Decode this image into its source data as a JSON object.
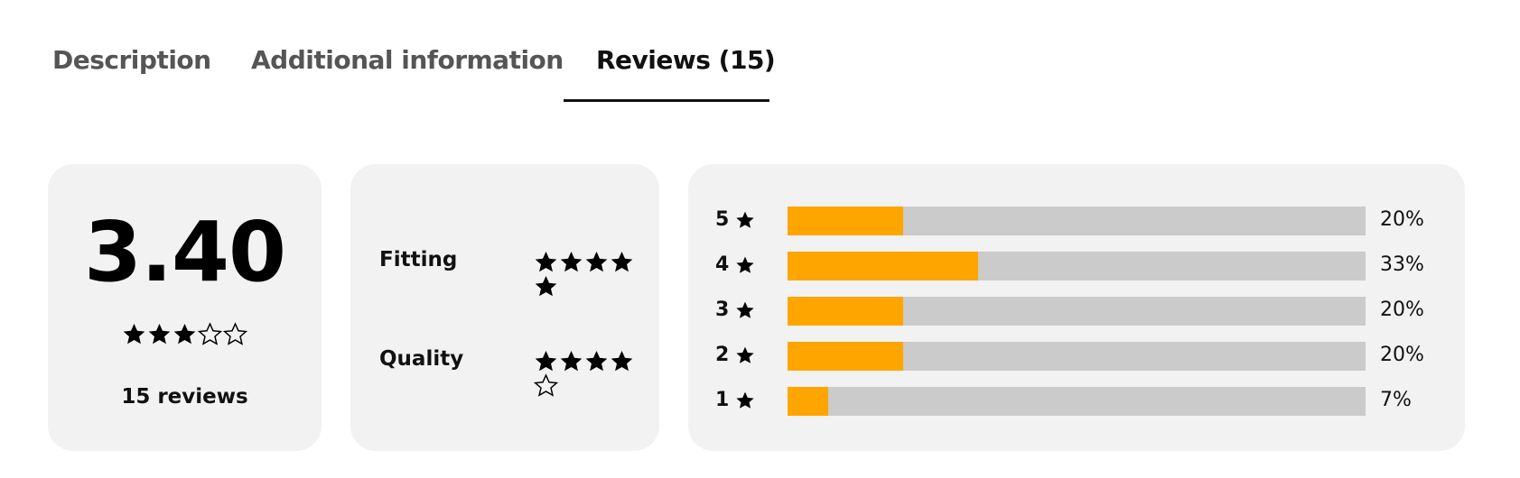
{
  "tabs": [
    {
      "label": "Description",
      "active": false
    },
    {
      "label": "Additional information",
      "active": false
    },
    {
      "label": "Reviews (15)",
      "active": true
    }
  ],
  "summary": {
    "average": "3.40",
    "average_value": 3.4,
    "max_stars": 5,
    "reviews_label": "15 reviews"
  },
  "attributes": [
    {
      "label": "Fitting",
      "rating": 5
    },
    {
      "label": "Quality",
      "rating": 4
    }
  ],
  "distribution": [
    {
      "stars": "5",
      "percent_label": "20%",
      "percent": 20
    },
    {
      "stars": "4",
      "percent_label": "33%",
      "percent": 33
    },
    {
      "stars": "3",
      "percent_label": "20%",
      "percent": 20
    },
    {
      "stars": "2",
      "percent_label": "20%",
      "percent": 20
    },
    {
      "stars": "1",
      "percent_label": "7%",
      "percent": 7
    }
  ],
  "colors": {
    "accent_fill": "#ffa500",
    "track": "#cbcbcb",
    "card_bg": "#f2f2f2",
    "star": "#000000"
  },
  "icons": {
    "full": "star-filled-icon",
    "half": "star-half-icon",
    "empty": "star-empty-icon"
  }
}
